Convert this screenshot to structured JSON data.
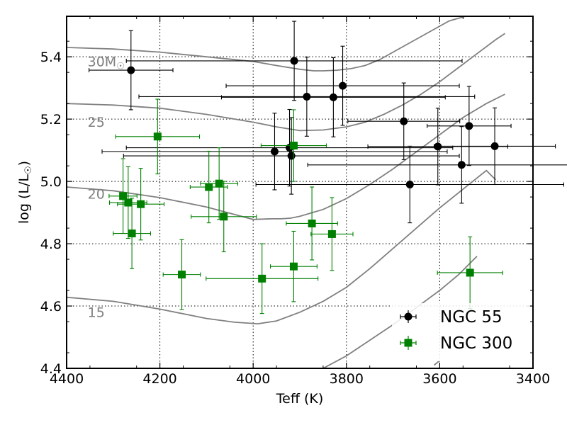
{
  "chart_data": {
    "type": "scatter",
    "xlabel": "Teff (K)",
    "ylabel_base": "log (L/L",
    "ylabel_sub": "☉",
    "ylabel_close": ")",
    "xlim": [
      4400,
      3400
    ],
    "ylim": [
      4.4,
      5.53
    ],
    "x_ticks": [
      4400,
      4200,
      4000,
      3800,
      3600,
      3400
    ],
    "x_tick_labels": [
      "4400",
      "4200",
      "4000",
      "3800",
      "3600",
      "3400"
    ],
    "y_ticks": [
      4.4,
      4.6,
      4.8,
      5.0,
      5.2,
      5.4
    ],
    "y_tick_labels": [
      "4.4",
      "4.6",
      "4.8",
      "5.0",
      "5.2",
      "5.4"
    ],
    "grid": true,
    "legend_position": "bottom-right",
    "track_color": "#808080",
    "tracks": [
      {
        "name": "30M",
        "label": "30M",
        "label_sub": "☉",
        "label_at": [
          4355,
          5.37
        ],
        "x": [
          4400,
          4300,
          4200,
          4100,
          4000,
          3950,
          3900,
          3870,
          3850,
          3820,
          3790,
          3760,
          3730,
          3700,
          3670,
          3640,
          3610,
          3580,
          3545
        ],
        "y": [
          5.43,
          5.425,
          5.415,
          5.4,
          5.385,
          5.372,
          5.36,
          5.355,
          5.355,
          5.357,
          5.362,
          5.372,
          5.39,
          5.415,
          5.44,
          5.465,
          5.49,
          5.515,
          5.53
        ]
      },
      {
        "name": "25",
        "label": "25",
        "label_sub": "",
        "label_at": [
          4355,
          5.175
        ],
        "x": [
          4400,
          4300,
          4200,
          4100,
          4000,
          3950,
          3900,
          3850,
          3800,
          3760,
          3720,
          3680,
          3640,
          3600,
          3560,
          3520,
          3480,
          3460
        ],
        "y": [
          5.25,
          5.245,
          5.235,
          5.215,
          5.19,
          5.175,
          5.163,
          5.165,
          5.175,
          5.19,
          5.215,
          5.245,
          5.28,
          5.32,
          5.365,
          5.41,
          5.455,
          5.475
        ]
      },
      {
        "name": "20",
        "label": "20",
        "label_sub": "",
        "label_at": [
          4355,
          4.945
        ],
        "x": [
          4400,
          4300,
          4200,
          4100,
          4000,
          3960,
          3940,
          3920,
          3900,
          3850,
          3800,
          3750,
          3700,
          3650,
          3600,
          3550,
          3500,
          3460
        ],
        "y": [
          4.982,
          4.97,
          4.948,
          4.918,
          4.878,
          4.88,
          4.88,
          4.882,
          4.888,
          4.91,
          4.945,
          4.99,
          5.04,
          5.095,
          5.15,
          5.205,
          5.25,
          5.28
        ]
      },
      {
        "name": "15",
        "label": "15",
        "label_sub": "",
        "label_at": [
          4355,
          4.565
        ],
        "x": [
          4400,
          4300,
          4200,
          4100,
          4040,
          3990,
          3950,
          3900,
          3850,
          3800,
          3750,
          3700,
          3650,
          3600,
          3550,
          3500,
          3480
        ],
        "y": [
          4.628,
          4.615,
          4.59,
          4.56,
          4.548,
          4.543,
          4.552,
          4.58,
          4.615,
          4.66,
          4.72,
          4.785,
          4.85,
          4.915,
          4.975,
          5.035,
          5.005
        ]
      },
      {
        "name": "low",
        "label": "",
        "label_sub": "",
        "label_at": null,
        "x": [
          3850,
          3800,
          3750,
          3700,
          3650,
          3600,
          3560,
          3520
        ],
        "y": [
          4.4,
          4.44,
          4.49,
          4.54,
          4.595,
          4.65,
          4.7,
          4.76
        ]
      },
      {
        "name": "lowest",
        "label": "",
        "label_sub": "",
        "label_at": null,
        "x": [
          3612,
          3600
        ],
        "y": [
          4.41,
          4.425
        ]
      }
    ],
    "series": [
      {
        "name": "NGC 55",
        "color": "#000000",
        "marker": "circle",
        "points": [
          {
            "x": 4262,
            "y": 5.357,
            "xerr": 90,
            "yerr": 0.127
          },
          {
            "x": 3912,
            "y": 5.387,
            "xerr": 360,
            "yerr": 0.127
          },
          {
            "x": 3885,
            "y": 5.272,
            "xerr": 360,
            "yerr": 0.127
          },
          {
            "x": 3828,
            "y": 5.27,
            "xerr": 240,
            "yerr": 0.127
          },
          {
            "x": 3808,
            "y": 5.307,
            "xerr": 250,
            "yerr": 0.127
          },
          {
            "x": 3954,
            "y": 5.096,
            "xerr": 370,
            "yerr": 0.123
          },
          {
            "x": 3922,
            "y": 5.108,
            "xerr": 350,
            "yerr": 0.123
          },
          {
            "x": 3918,
            "y": 5.082,
            "xerr": 360,
            "yerr": 0.123
          },
          {
            "x": 3677,
            "y": 5.193,
            "xerr": 120,
            "yerr": 0.123
          },
          {
            "x": 3604,
            "y": 5.112,
            "xerr": 150,
            "yerr": 0.123
          },
          {
            "x": 3664,
            "y": 4.99,
            "xerr": 330,
            "yerr": 0.123
          },
          {
            "x": 3553,
            "y": 5.053,
            "xerr": 330,
            "yerr": 0.123
          },
          {
            "x": 3537,
            "y": 5.178,
            "xerr": 90,
            "yerr": 0.127
          },
          {
            "x": 3482,
            "y": 5.113,
            "xerr": 130,
            "yerr": 0.123
          }
        ]
      },
      {
        "name": "NGC 300",
        "color": "#008000",
        "marker": "square",
        "points": [
          {
            "x": 4205,
            "y": 5.144,
            "xerr": 90,
            "yerr": 0.12
          },
          {
            "x": 3913,
            "y": 5.115,
            "xerr": 70,
            "yerr": 0.115
          },
          {
            "x": 4279,
            "y": 4.953,
            "xerr": 30,
            "yerr": 0.12
          },
          {
            "x": 4268,
            "y": 4.932,
            "xerr": 40,
            "yerr": 0.115
          },
          {
            "x": 4241,
            "y": 4.927,
            "xerr": 50,
            "yerr": 0.115
          },
          {
            "x": 4260,
            "y": 4.833,
            "xerr": 40,
            "yerr": 0.113
          },
          {
            "x": 4095,
            "y": 4.982,
            "xerr": 40,
            "yerr": 0.115
          },
          {
            "x": 4073,
            "y": 4.993,
            "xerr": 40,
            "yerr": 0.115
          },
          {
            "x": 4063,
            "y": 4.887,
            "xerr": 70,
            "yerr": 0.113
          },
          {
            "x": 3874,
            "y": 4.865,
            "xerr": 55,
            "yerr": 0.117
          },
          {
            "x": 3831,
            "y": 4.831,
            "xerr": 45,
            "yerr": 0.117
          },
          {
            "x": 4153,
            "y": 4.701,
            "xerr": 40,
            "yerr": 0.112
          },
          {
            "x": 3981,
            "y": 4.688,
            "xerr": 120,
            "yerr": 0.112
          },
          {
            "x": 3913,
            "y": 4.727,
            "xerr": 50,
            "yerr": 0.113
          },
          {
            "x": 3535,
            "y": 4.707,
            "xerr": 70,
            "yerr": 0.115
          }
        ]
      }
    ]
  }
}
